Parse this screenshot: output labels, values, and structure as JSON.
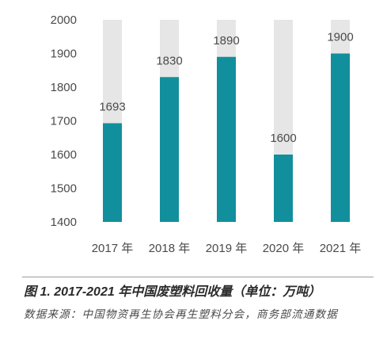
{
  "chart_data": {
    "type": "bar",
    "categories": [
      "2017 年",
      "2018 年",
      "2019 年",
      "2020 年",
      "2021 年"
    ],
    "values": [
      1693,
      1830,
      1890,
      1600,
      1900
    ],
    "ylim": [
      1400,
      2000
    ],
    "yticks": [
      "2000",
      "1900",
      "1800",
      "1700",
      "1600",
      "1500",
      "1400"
    ],
    "ytick_values": [
      2000,
      1900,
      1800,
      1700,
      1600,
      1500,
      1400
    ],
    "data_labels": [
      "1693",
      "1830",
      "1890",
      "1600",
      "1900"
    ],
    "grid": false,
    "legend": "none",
    "colors": {
      "bar": "#128f9d",
      "bar_background": "#e6e6e6",
      "label": "#4a4a4a"
    }
  },
  "caption": {
    "title": "图 1. 2017-2021 年中国废塑料回收量（单位：万吨）",
    "source": "数据来源：中国物资再生协会再生塑料分会，商务部流通数据"
  }
}
